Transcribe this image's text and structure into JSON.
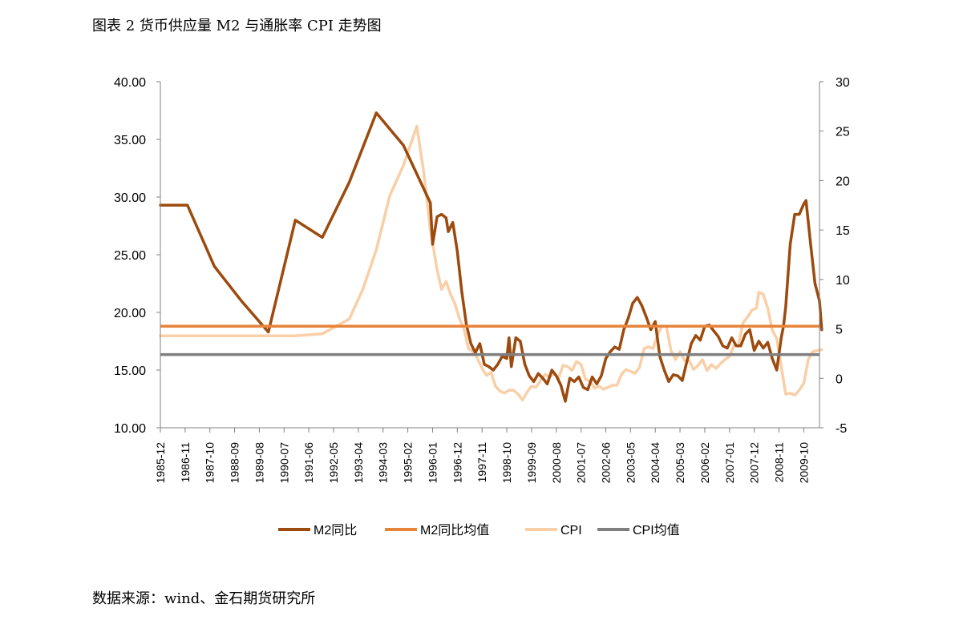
{
  "figure": {
    "title": "图表 2 货币供应量 M2 与通胀率 CPI 走势图",
    "source": "数据来源：wind、金石期货研究所"
  },
  "colors": {
    "m2": "#9C4A0E",
    "m2_mean": "#E8833A",
    "cpi": "#F9CFA8",
    "cpi_mean": "#7F7F7F",
    "axis": "#808080"
  },
  "chart_data": {
    "type": "line",
    "title": "",
    "xlabel": "",
    "ylabel_left": "",
    "ylabel_right": "",
    "ylim_left": [
      10,
      40
    ],
    "ylim_right": [
      -5,
      30
    ],
    "yticks_left": [
      "40.00",
      "35.00",
      "30.00",
      "25.00",
      "20.00",
      "15.00",
      "10.00"
    ],
    "yticks_right": [
      "30",
      "25",
      "20",
      "15",
      "10",
      "5",
      "0",
      "-5"
    ],
    "xticks": [
      "1985-12",
      "1986-11",
      "1987-10",
      "1988-09",
      "1989-08",
      "1990-07",
      "1991-06",
      "1992-05",
      "1993-04",
      "1994-03",
      "1995-02",
      "1996-01",
      "1996-12",
      "1997-11",
      "1998-10",
      "1999-09",
      "2000-08",
      "2001-07",
      "2002-06",
      "2003-05",
      "2004-04",
      "2005-03",
      "2006-02",
      "2007-01",
      "2007-12",
      "2008-11",
      "2009-10"
    ],
    "x_range": [
      "1985-12",
      "2010-05"
    ],
    "grid": false,
    "legend_position": "bottom",
    "series": [
      {
        "name": "M2同比",
        "axis": "left",
        "color": "#9C4A0E",
        "points": [
          [
            "1985-12",
            29.3
          ],
          [
            "1986-12",
            29.3
          ],
          [
            "1987-12",
            24.0
          ],
          [
            "1988-12",
            21.0
          ],
          [
            "1989-12",
            18.3
          ],
          [
            "1990-12",
            28.0
          ],
          [
            "1991-12",
            26.5
          ],
          [
            "1992-12",
            31.3
          ],
          [
            "1993-12",
            37.3
          ],
          [
            "1994-12",
            34.5
          ],
          [
            "1995-12",
            29.5
          ],
          [
            "1996-01",
            25.9
          ],
          [
            "1996-03",
            28.3
          ],
          [
            "1996-05",
            28.5
          ],
          [
            "1996-07",
            28.2
          ],
          [
            "1996-08",
            27.0
          ],
          [
            "1996-10",
            27.8
          ],
          [
            "1996-12",
            25.3
          ],
          [
            "1997-02",
            21.8
          ],
          [
            "1997-04",
            19.0
          ],
          [
            "1997-06",
            17.3
          ],
          [
            "1997-08",
            16.5
          ],
          [
            "1997-10",
            17.3
          ],
          [
            "1997-12",
            15.5
          ],
          [
            "1998-02",
            15.3
          ],
          [
            "1998-04",
            15.0
          ],
          [
            "1998-06",
            15.5
          ],
          [
            "1998-08",
            16.2
          ],
          [
            "1998-10",
            16.0
          ],
          [
            "1998-11",
            17.8
          ],
          [
            "1998-12",
            15.3
          ],
          [
            "1999-02",
            17.8
          ],
          [
            "1999-04",
            17.5
          ],
          [
            "1999-06",
            15.5
          ],
          [
            "1999-08",
            14.5
          ],
          [
            "1999-10",
            14.0
          ],
          [
            "1999-12",
            14.7
          ],
          [
            "2000-02",
            14.3
          ],
          [
            "2000-04",
            13.8
          ],
          [
            "2000-06",
            15.0
          ],
          [
            "2000-08",
            14.5
          ],
          [
            "2000-10",
            13.7
          ],
          [
            "2000-12",
            12.3
          ],
          [
            "2001-02",
            14.3
          ],
          [
            "2001-04",
            14.0
          ],
          [
            "2001-06",
            14.4
          ],
          [
            "2001-08",
            13.5
          ],
          [
            "2001-10",
            13.3
          ],
          [
            "2001-12",
            14.4
          ],
          [
            "2002-02",
            13.8
          ],
          [
            "2002-04",
            14.5
          ],
          [
            "2002-06",
            16.0
          ],
          [
            "2002-08",
            16.6
          ],
          [
            "2002-10",
            17.0
          ],
          [
            "2002-12",
            16.8
          ],
          [
            "2003-02",
            18.5
          ],
          [
            "2003-04",
            19.5
          ],
          [
            "2003-06",
            20.8
          ],
          [
            "2003-08",
            21.3
          ],
          [
            "2003-10",
            20.6
          ],
          [
            "2003-12",
            19.6
          ],
          [
            "2004-02",
            18.5
          ],
          [
            "2004-04",
            19.2
          ],
          [
            "2004-06",
            16.2
          ],
          [
            "2004-08",
            15.0
          ],
          [
            "2004-10",
            14.0
          ],
          [
            "2004-12",
            14.6
          ],
          [
            "2005-02",
            14.5
          ],
          [
            "2005-04",
            14.1
          ],
          [
            "2005-06",
            15.7
          ],
          [
            "2005-08",
            17.3
          ],
          [
            "2005-10",
            18.0
          ],
          [
            "2005-12",
            17.6
          ],
          [
            "2006-02",
            18.8
          ],
          [
            "2006-04",
            18.9
          ],
          [
            "2006-06",
            18.4
          ],
          [
            "2006-08",
            17.9
          ],
          [
            "2006-10",
            17.1
          ],
          [
            "2006-12",
            16.9
          ],
          [
            "2007-02",
            17.8
          ],
          [
            "2007-04",
            17.1
          ],
          [
            "2007-06",
            17.1
          ],
          [
            "2007-08",
            18.1
          ],
          [
            "2007-10",
            18.5
          ],
          [
            "2007-12",
            16.7
          ],
          [
            "2008-02",
            17.5
          ],
          [
            "2008-04",
            16.9
          ],
          [
            "2008-06",
            17.4
          ],
          [
            "2008-08",
            16.0
          ],
          [
            "2008-10",
            15.0
          ],
          [
            "2008-12",
            17.8
          ],
          [
            "2009-01",
            18.8
          ],
          [
            "2009-02",
            20.5
          ],
          [
            "2009-04",
            25.9
          ],
          [
            "2009-06",
            28.5
          ],
          [
            "2009-08",
            28.5
          ],
          [
            "2009-10",
            29.4
          ],
          [
            "2009-11",
            29.7
          ],
          [
            "2010-01",
            26.0
          ],
          [
            "2010-03",
            22.5
          ],
          [
            "2010-05",
            21.0
          ],
          [
            "2010-06",
            18.5
          ]
        ]
      },
      {
        "name": "M2同比均值",
        "axis": "left",
        "color": "#E8833A",
        "constant": 18.8
      },
      {
        "name": "CPI",
        "axis": "right",
        "color": "#F9CFA8",
        "points": [
          [
            "1985-12",
            4.3
          ],
          [
            "1986-12",
            4.3
          ],
          [
            "1987-12",
            4.3
          ],
          [
            "1988-12",
            4.3
          ],
          [
            "1989-12",
            4.3
          ],
          [
            "1990-12",
            4.3
          ],
          [
            "1991-12",
            4.5
          ],
          [
            "1992-12",
            6.0
          ],
          [
            "1993-06",
            9.0
          ],
          [
            "1993-12",
            13.0
          ],
          [
            "1994-06",
            18.5
          ],
          [
            "1994-12",
            21.5
          ],
          [
            "1995-06",
            25.5
          ],
          [
            "1995-09",
            21.0
          ],
          [
            "1995-12",
            15.0
          ],
          [
            "1996-03",
            11.0
          ],
          [
            "1996-05",
            9.0
          ],
          [
            "1996-07",
            9.8
          ],
          [
            "1996-09",
            8.5
          ],
          [
            "1996-11",
            7.5
          ],
          [
            "1997-01",
            6.0
          ],
          [
            "1997-03",
            5.0
          ],
          [
            "1997-05",
            3.0
          ],
          [
            "1997-07",
            2.7
          ],
          [
            "1997-09",
            2.0
          ],
          [
            "1997-11",
            1.0
          ],
          [
            "1998-01",
            0.3
          ],
          [
            "1998-03",
            0.6
          ],
          [
            "1998-05",
            -0.8
          ],
          [
            "1998-07",
            -1.3
          ],
          [
            "1998-09",
            -1.5
          ],
          [
            "1998-11",
            -1.2
          ],
          [
            "1999-01",
            -1.2
          ],
          [
            "1999-03",
            -1.6
          ],
          [
            "1999-05",
            -2.2
          ],
          [
            "1999-07",
            -1.4
          ],
          [
            "1999-09",
            -0.8
          ],
          [
            "1999-11",
            -0.9
          ],
          [
            "2000-01",
            -0.2
          ],
          [
            "2000-03",
            0.4
          ],
          [
            "2000-05",
            0.1
          ],
          [
            "2000-07",
            0.5
          ],
          [
            "2000-09",
            0.0
          ],
          [
            "2000-11",
            1.3
          ],
          [
            "2001-01",
            1.2
          ],
          [
            "2001-03",
            0.8
          ],
          [
            "2001-05",
            1.7
          ],
          [
            "2001-07",
            1.4
          ],
          [
            "2001-09",
            -0.1
          ],
          [
            "2001-11",
            -0.3
          ],
          [
            "2002-01",
            -1.0
          ],
          [
            "2002-03",
            -0.8
          ],
          [
            "2002-05",
            -1.1
          ],
          [
            "2002-07",
            -0.9
          ],
          [
            "2002-09",
            -0.7
          ],
          [
            "2002-11",
            -0.7
          ],
          [
            "2003-01",
            0.4
          ],
          [
            "2003-03",
            0.9
          ],
          [
            "2003-05",
            0.7
          ],
          [
            "2003-07",
            0.5
          ],
          [
            "2003-09",
            1.1
          ],
          [
            "2003-11",
            3.0
          ],
          [
            "2004-01",
            3.2
          ],
          [
            "2004-03",
            3.0
          ],
          [
            "2004-05",
            4.4
          ],
          [
            "2004-07",
            5.3
          ],
          [
            "2004-09",
            5.2
          ],
          [
            "2004-11",
            2.8
          ],
          [
            "2005-01",
            1.9
          ],
          [
            "2005-03",
            2.7
          ],
          [
            "2005-05",
            1.8
          ],
          [
            "2005-07",
            1.8
          ],
          [
            "2005-09",
            0.9
          ],
          [
            "2005-11",
            1.3
          ],
          [
            "2006-01",
            1.9
          ],
          [
            "2006-03",
            0.8
          ],
          [
            "2006-05",
            1.4
          ],
          [
            "2006-07",
            1.0
          ],
          [
            "2006-09",
            1.5
          ],
          [
            "2006-11",
            1.9
          ],
          [
            "2007-01",
            2.2
          ],
          [
            "2007-03",
            3.3
          ],
          [
            "2007-05",
            3.4
          ],
          [
            "2007-07",
            5.6
          ],
          [
            "2007-09",
            6.2
          ],
          [
            "2007-11",
            6.9
          ],
          [
            "2008-01",
            7.1
          ],
          [
            "2008-02",
            8.7
          ],
          [
            "2008-04",
            8.5
          ],
          [
            "2008-06",
            7.1
          ],
          [
            "2008-08",
            4.9
          ],
          [
            "2008-10",
            4.0
          ],
          [
            "2008-12",
            1.2
          ],
          [
            "2009-02",
            -1.6
          ],
          [
            "2009-04",
            -1.5
          ],
          [
            "2009-06",
            -1.7
          ],
          [
            "2009-08",
            -1.2
          ],
          [
            "2009-10",
            -0.5
          ],
          [
            "2009-12",
            1.9
          ],
          [
            "2010-02",
            2.7
          ],
          [
            "2010-04",
            2.8
          ],
          [
            "2010-06",
            2.9
          ]
        ]
      },
      {
        "name": "CPI均值",
        "axis": "right",
        "color": "#7F7F7F",
        "constant": 2.4
      }
    ]
  }
}
